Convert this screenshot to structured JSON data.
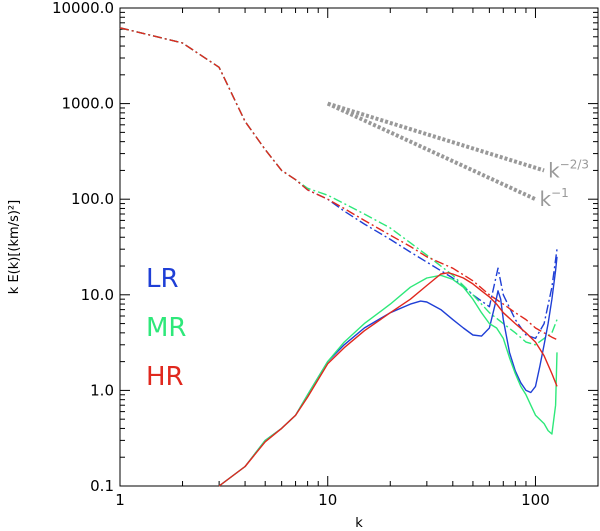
{
  "chart_data": {
    "type": "line",
    "title": "",
    "xlabel": "k",
    "ylabel": "k E(k)[(km/s)²]",
    "x_scale": "log",
    "y_scale": "log",
    "xlim": [
      1,
      200
    ],
    "ylim": [
      0.1,
      10000
    ],
    "x_ticks": [
      1,
      10,
      100
    ],
    "x_tick_labels": [
      "1",
      "10",
      "100"
    ],
    "y_ticks": [
      0.1,
      1,
      10,
      100,
      1000,
      10000
    ],
    "y_tick_labels": [
      "0.1",
      "1.0",
      "10.0",
      "100.0",
      "1000.0",
      "10000.0"
    ],
    "grid": false,
    "legend_placement": "left",
    "legend": [
      "LR",
      "MR",
      "HR"
    ],
    "colors": {
      "LR": "#1f3fd6",
      "MR": "#2ee87a",
      "HR": "#e0281e",
      "reference": "#999999"
    },
    "series": [
      {
        "name": "LR",
        "kind": "dash-dot",
        "points": [
          [
            1,
            6200
          ],
          [
            2,
            4300
          ],
          [
            3,
            2400
          ],
          [
            4,
            650
          ],
          [
            5,
            330
          ],
          [
            6,
            200
          ],
          [
            7,
            160
          ],
          [
            8,
            125
          ],
          [
            10,
            100
          ],
          [
            12,
            75
          ],
          [
            15,
            55
          ],
          [
            20,
            38
          ],
          [
            25,
            28
          ],
          [
            30,
            22
          ],
          [
            40,
            15
          ],
          [
            50,
            10
          ],
          [
            60,
            7.5
          ],
          [
            66,
            19
          ],
          [
            70,
            10
          ],
          [
            80,
            5.5
          ],
          [
            90,
            3.8
          ],
          [
            100,
            3.5
          ],
          [
            110,
            5
          ],
          [
            120,
            12
          ],
          [
            127,
            30
          ]
        ]
      },
      {
        "name": "MR",
        "kind": "dash-dot",
        "points": [
          [
            1,
            6200
          ],
          [
            2,
            4300
          ],
          [
            3,
            2400
          ],
          [
            4,
            650
          ],
          [
            5,
            330
          ],
          [
            6,
            200
          ],
          [
            7,
            160
          ],
          [
            8,
            130
          ],
          [
            10,
            110
          ],
          [
            12,
            90
          ],
          [
            15,
            70
          ],
          [
            20,
            50
          ],
          [
            25,
            35
          ],
          [
            30,
            26
          ],
          [
            40,
            16
          ],
          [
            50,
            10
          ],
          [
            60,
            6.5
          ],
          [
            70,
            5
          ],
          [
            80,
            4
          ],
          [
            90,
            3.2
          ],
          [
            100,
            3
          ],
          [
            110,
            3.5
          ],
          [
            120,
            4
          ],
          [
            127,
            5.5
          ]
        ]
      },
      {
        "name": "HR",
        "kind": "dash-dot",
        "points": [
          [
            1,
            6200
          ],
          [
            2,
            4300
          ],
          [
            3,
            2400
          ],
          [
            4,
            650
          ],
          [
            5,
            330
          ],
          [
            6,
            200
          ],
          [
            7,
            160
          ],
          [
            8,
            125
          ],
          [
            10,
            100
          ],
          [
            12,
            80
          ],
          [
            15,
            60
          ],
          [
            20,
            42
          ],
          [
            25,
            32
          ],
          [
            30,
            25
          ],
          [
            40,
            19
          ],
          [
            50,
            14
          ],
          [
            60,
            10
          ],
          [
            70,
            8
          ],
          [
            80,
            6.5
          ],
          [
            90,
            5.5
          ],
          [
            100,
            4.5
          ],
          [
            110,
            4
          ],
          [
            120,
            3.6
          ],
          [
            127,
            3.4
          ]
        ]
      },
      {
        "name": "LR",
        "kind": "solid",
        "points": [
          [
            3,
            0.1
          ],
          [
            4,
            0.16
          ],
          [
            5,
            0.3
          ],
          [
            6,
            0.4
          ],
          [
            7,
            0.55
          ],
          [
            8,
            0.9
          ],
          [
            10,
            2
          ],
          [
            12,
            3
          ],
          [
            15,
            4.5
          ],
          [
            20,
            6.5
          ],
          [
            25,
            8
          ],
          [
            28,
            8.6
          ],
          [
            30,
            8.4
          ],
          [
            35,
            7
          ],
          [
            40,
            5.5
          ],
          [
            45,
            4.5
          ],
          [
            50,
            3.8
          ],
          [
            55,
            3.7
          ],
          [
            60,
            4.5
          ],
          [
            64,
            8
          ],
          [
            66,
            11
          ],
          [
            68,
            9
          ],
          [
            70,
            5.5
          ],
          [
            75,
            2.5
          ],
          [
            80,
            1.6
          ],
          [
            85,
            1.2
          ],
          [
            90,
            1
          ],
          [
            95,
            0.95
          ],
          [
            100,
            1.1
          ],
          [
            105,
            1.8
          ],
          [
            110,
            3
          ],
          [
            115,
            5
          ],
          [
            120,
            9
          ],
          [
            125,
            18
          ],
          [
            127,
            25
          ]
        ]
      },
      {
        "name": "MR",
        "kind": "solid",
        "points": [
          [
            3,
            0.1
          ],
          [
            4,
            0.16
          ],
          [
            5,
            0.3
          ],
          [
            6,
            0.4
          ],
          [
            7,
            0.55
          ],
          [
            8,
            0.9
          ],
          [
            10,
            2
          ],
          [
            12,
            3.2
          ],
          [
            15,
            5
          ],
          [
            20,
            8
          ],
          [
            25,
            12
          ],
          [
            30,
            15
          ],
          [
            35,
            16
          ],
          [
            40,
            14.5
          ],
          [
            45,
            12
          ],
          [
            50,
            9
          ],
          [
            55,
            6.5
          ],
          [
            60,
            5
          ],
          [
            65,
            4.5
          ],
          [
            70,
            3.5
          ],
          [
            75,
            2.2
          ],
          [
            80,
            1.5
          ],
          [
            85,
            1.1
          ],
          [
            90,
            0.9
          ],
          [
            95,
            0.7
          ],
          [
            100,
            0.55
          ],
          [
            110,
            0.45
          ],
          [
            115,
            0.38
          ],
          [
            120,
            0.35
          ],
          [
            125,
            0.7
          ],
          [
            127,
            2.5
          ]
        ]
      },
      {
        "name": "HR",
        "kind": "solid",
        "points": [
          [
            3,
            0.1
          ],
          [
            4,
            0.16
          ],
          [
            5,
            0.29
          ],
          [
            6,
            0.4
          ],
          [
            7,
            0.55
          ],
          [
            8,
            0.85
          ],
          [
            10,
            1.9
          ],
          [
            12,
            2.8
          ],
          [
            15,
            4.2
          ],
          [
            20,
            6.5
          ],
          [
            25,
            9
          ],
          [
            30,
            12.5
          ],
          [
            35,
            16.5
          ],
          [
            38,
            17
          ],
          [
            40,
            16.5
          ],
          [
            45,
            15
          ],
          [
            50,
            13
          ],
          [
            55,
            11
          ],
          [
            60,
            9.5
          ],
          [
            65,
            8
          ],
          [
            70,
            6.5
          ],
          [
            80,
            5
          ],
          [
            90,
            4
          ],
          [
            100,
            3.2
          ],
          [
            110,
            2.3
          ],
          [
            120,
            1.5
          ],
          [
            127,
            1.1
          ]
        ]
      }
    ],
    "reference_lines": [
      {
        "label_base": "k",
        "label_exp": "−2/3",
        "slope": -0.667,
        "x": [
          10,
          110
        ],
        "y": [
          1000,
          200
        ]
      },
      {
        "label_base": "k",
        "label_exp": "−1",
        "slope": -1,
        "x": [
          10,
          100
        ],
        "y": [
          1000,
          100
        ]
      }
    ]
  }
}
